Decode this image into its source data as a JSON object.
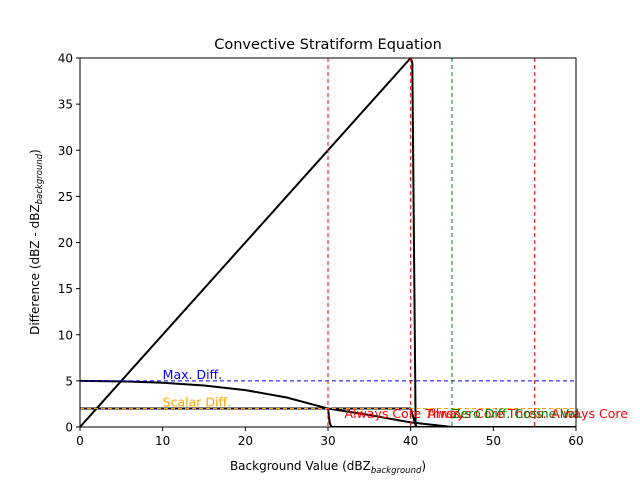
{
  "chart_data": {
    "type": "line",
    "title": "Convective Stratiform Equation",
    "xlabel": {
      "main": "Background Value (dBZ",
      "sub": "background",
      "close": ")"
    },
    "ylabel": {
      "main": "Difference (dBZ - dBZ",
      "sub": "background",
      "close": ")"
    },
    "xlim": [
      0,
      60
    ],
    "ylim": [
      0,
      40
    ],
    "xticks": [
      "0",
      "10",
      "20",
      "30",
      "40",
      "50",
      "60"
    ],
    "yticks": [
      "0",
      "5",
      "10",
      "15",
      "20",
      "25",
      "30",
      "35",
      "40"
    ],
    "grid": false,
    "legend": "none",
    "series": [
      {
        "color": "#000000",
        "points": [
          [
            0,
            0
          ],
          [
            40,
            40
          ],
          [
            40.2,
            39.5
          ],
          [
            40.6,
            0
          ]
        ]
      },
      {
        "color": "#000000",
        "points": [
          [
            0,
            5
          ],
          [
            5,
            4.95
          ],
          [
            10,
            4.8
          ],
          [
            15,
            4.5
          ],
          [
            20,
            4.0
          ],
          [
            25,
            3.2
          ],
          [
            30,
            2.0
          ],
          [
            35,
            1.3
          ],
          [
            40,
            0.5
          ],
          [
            45,
            0
          ]
        ]
      },
      {
        "color": "#000000",
        "points": [
          [
            0,
            2
          ],
          [
            30,
            2
          ],
          [
            30.2,
            0.5
          ],
          [
            30.4,
            0
          ],
          [
            60,
            0
          ]
        ]
      },
      {
        "color": "#000000",
        "points": [
          [
            30.4,
            2
          ],
          [
            40,
            2
          ],
          [
            40.5,
            0.5
          ],
          [
            40.7,
            0
          ],
          [
            60,
            0
          ]
        ]
      }
    ],
    "reference_lines": [
      {
        "orientation": "horizontal",
        "value": 5,
        "color": "#0000ff",
        "label": "Max. Diff.",
        "label_x": 10,
        "label_color": "#0000ff"
      },
      {
        "orientation": "horizontal",
        "value": 2,
        "color": "#ffa500",
        "label": "Scalar Diff.",
        "label_x": 10,
        "label_color": "#ffa500"
      },
      {
        "orientation": "vertical",
        "value": 30,
        "color": "#ff0000",
        "label": "Always Core Thres.",
        "label_x": 32,
        "label_color": "#ff0000"
      },
      {
        "orientation": "vertical",
        "value": 40,
        "color": "#ff0000",
        "label": "Always Core Thres.",
        "label_x": 42,
        "label_color": "#ff0000"
      },
      {
        "orientation": "vertical",
        "value": 45,
        "color": "#008000",
        "label": "Zero Diff. Cosine Val.",
        "label_x": 45,
        "label_color": "#008000"
      },
      {
        "orientation": "vertical",
        "value": 55,
        "color": "#ff0000",
        "label": "Always Core",
        "label_x": 57,
        "label_color": "#ff0000"
      }
    ]
  }
}
